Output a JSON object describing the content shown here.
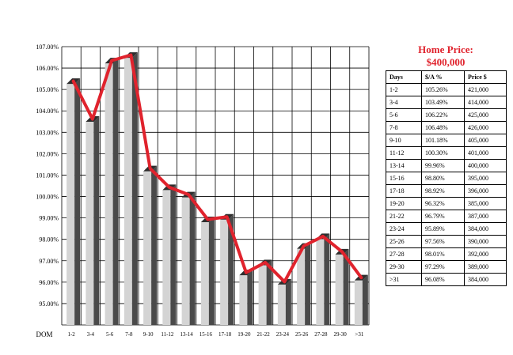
{
  "chart_data": {
    "type": "bar",
    "x_axis_prefix": "DOM",
    "categories": [
      "1-2",
      "3-4",
      "5-6",
      "7-8",
      "9-10",
      "11-12",
      "13-14",
      "15-16",
      "17-18",
      "19-20",
      "21-22",
      "23-24",
      "25-26",
      "27-28",
      "29-30",
      ">31"
    ],
    "values": [
      105.26,
      103.49,
      106.22,
      106.48,
      101.18,
      100.3,
      99.96,
      98.8,
      98.92,
      96.32,
      96.79,
      95.89,
      97.56,
      98.01,
      97.29,
      96.08
    ],
    "y_ticks": [
      "95.00%",
      "96.00%",
      "97.00%",
      "98.00%",
      "99.00%",
      "100.00%",
      "101.00%",
      "102.00%",
      "103.00%",
      "104.00%",
      "105.00%",
      "106.00%",
      "107.00%"
    ],
    "ylim": [
      94,
      107
    ],
    "overlay_line": {
      "color": "#e0232d",
      "values": [
        105.26,
        103.49,
        106.22,
        106.48,
        101.18,
        100.3,
        99.96,
        98.8,
        98.92,
        96.32,
        96.79,
        95.89,
        97.56,
        98.01,
        97.29,
        96.08
      ]
    },
    "grid": true
  },
  "price_panel": {
    "title_line1": "Home Price:",
    "title_line2": "$400,000",
    "headers": [
      "Days",
      "$/A %",
      "Price $"
    ],
    "rows": [
      [
        "1-2",
        "105.26%",
        "421,000"
      ],
      [
        "3-4",
        "103.49%",
        "414,000"
      ],
      [
        "5-6",
        "106.22%",
        "425,000"
      ],
      [
        "7-8",
        "106.48%",
        "426,000"
      ],
      [
        "9-10",
        "101.18%",
        "405,000"
      ],
      [
        "11-12",
        "100.30%",
        "401,000"
      ],
      [
        "13-14",
        "99.96%",
        "400,000"
      ],
      [
        "15-16",
        "98.80%",
        "395,000"
      ],
      [
        "17-18",
        "98.92%",
        "396,000"
      ],
      [
        "19-20",
        "96.32%",
        "385,000"
      ],
      [
        "21-22",
        "96.79%",
        "387,000"
      ],
      [
        "23-24",
        "95.89%",
        "384,000"
      ],
      [
        "25-26",
        "97.56%",
        "390,000"
      ],
      [
        "27-28",
        "98.01%",
        "392,000"
      ],
      [
        "29-30",
        "97.29%",
        "389,000"
      ],
      [
        ">31",
        "96.08%",
        "384,000"
      ]
    ]
  },
  "colors": {
    "accent": "#e0232d",
    "bar_front": "#d4d4d4",
    "bar_side": "#4a4a4a",
    "grid": "#000000"
  }
}
